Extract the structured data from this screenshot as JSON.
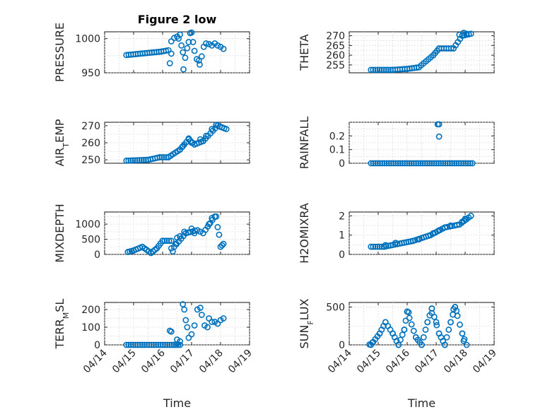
{
  "chart_data": [
    {
      "type": "scatter",
      "title": "Figure 2 low",
      "xlabel": "",
      "ylabel": "PRESSURE",
      "ylim": [
        950,
        1010
      ],
      "yticks": [
        950,
        1000
      ],
      "xlim": [
        0,
        5
      ],
      "xtick_labels": [],
      "grid": true,
      "color": "#0072BD",
      "segments": [
        [
          0.75,
          976,
          1.95,
          981
        ],
        [
          1.95,
          981,
          2.2,
          983
        ]
      ],
      "points": [
        [
          2.25,
          964
        ],
        [
          2.3,
          978
        ],
        [
          2.3,
          996
        ],
        [
          2.4,
          1001
        ],
        [
          2.5,
          1003
        ],
        [
          2.55,
          1000
        ],
        [
          2.6,
          1006
        ],
        [
          2.65,
          990
        ],
        [
          2.7,
          980
        ],
        [
          2.72,
          955
        ],
        [
          2.78,
          972
        ],
        [
          2.85,
          986
        ],
        [
          2.9,
          995
        ],
        [
          2.95,
          1008
        ],
        [
          3.0,
          1009
        ],
        [
          3.05,
          995
        ],
        [
          3.1,
          982
        ],
        [
          3.18,
          970
        ],
        [
          3.25,
          968
        ],
        [
          3.28,
          962
        ],
        [
          3.35,
          974
        ],
        [
          3.42,
          988
        ],
        [
          3.5,
          993
        ],
        [
          3.6,
          992
        ],
        [
          3.7,
          990
        ],
        [
          3.8,
          993
        ],
        [
          3.9,
          990
        ],
        [
          4.0,
          988
        ],
        [
          4.1,
          985
        ]
      ]
    },
    {
      "type": "scatter",
      "title": "",
      "xlabel": "",
      "ylabel": "THETA",
      "ylim": [
        251,
        272
      ],
      "yticks": [
        255,
        260,
        265,
        270
      ],
      "xlim": [
        0,
        5
      ],
      "xtick_labels": [],
      "grid": true,
      "color": "#0072BD",
      "segments": [
        [
          0.75,
          252.5,
          1.5,
          252.5
        ],
        [
          1.5,
          252.5,
          2.0,
          253
        ],
        [
          2.0,
          253,
          2.4,
          253.8
        ],
        [
          2.4,
          253.8,
          2.9,
          260
        ],
        [
          2.9,
          260,
          3.1,
          263.5
        ],
        [
          3.1,
          263.5,
          3.6,
          263.5
        ],
        [
          3.6,
          263.5,
          3.9,
          270
        ],
        [
          3.9,
          270,
          4.2,
          271
        ]
      ],
      "points": [
        [
          3.8,
          270.5
        ],
        [
          3.95,
          271.5
        ],
        [
          4.05,
          271
        ]
      ]
    },
    {
      "type": "scatter",
      "title": "",
      "xlabel": "",
      "ylabel": "AIR_TEMP",
      "ylim": [
        248,
        272
      ],
      "yticks": [
        250,
        260,
        270
      ],
      "xlim": [
        0,
        5
      ],
      "xtick_labels": [],
      "grid": true,
      "color": "#0072BD",
      "segments": [
        [
          0.75,
          249.5,
          1.5,
          250
        ],
        [
          1.5,
          250,
          1.9,
          251.5
        ],
        [
          1.9,
          251.5,
          2.2,
          251.5
        ],
        [
          2.2,
          251.5,
          2.6,
          256
        ],
        [
          2.6,
          256,
          2.9,
          262
        ],
        [
          2.9,
          262,
          3.1,
          259
        ],
        [
          3.1,
          259,
          3.4,
          261
        ],
        [
          3.4,
          261,
          3.9,
          270
        ],
        [
          3.9,
          270,
          4.2,
          268
        ]
      ],
      "points": [
        [
          2.7,
          258
        ],
        [
          2.9,
          262.5
        ],
        [
          3.0,
          260
        ],
        [
          3.3,
          262
        ],
        [
          3.5,
          264
        ],
        [
          3.7,
          268
        ],
        [
          3.85,
          270.5
        ],
        [
          4.05,
          269
        ]
      ]
    },
    {
      "type": "scatter",
      "title": "",
      "xlabel": "",
      "ylabel": "RAINFALL",
      "ylim": [
        0,
        0.3
      ],
      "yticks": [
        0,
        0.1,
        0.2
      ],
      "xlim": [
        0,
        5
      ],
      "xtick_labels": [],
      "grid": true,
      "color": "#0072BD",
      "segments": [
        [
          0.75,
          0,
          4.25,
          0
        ]
      ],
      "points": [
        [
          3.05,
          0.285
        ],
        [
          3.1,
          0.285
        ],
        [
          3.1,
          0.195
        ]
      ]
    },
    {
      "type": "scatter",
      "title": "",
      "xlabel": "",
      "ylabel": "MIXDEPTH",
      "ylim": [
        0,
        1400
      ],
      "yticks": [
        0,
        500,
        1000
      ],
      "xlim": [
        0,
        5
      ],
      "xtick_labels": [],
      "grid": true,
      "color": "#0072BD",
      "segments": [
        [
          0.8,
          80,
          1.0,
          130
        ],
        [
          1.0,
          130,
          1.3,
          250
        ],
        [
          1.3,
          250,
          1.6,
          50
        ],
        [
          1.6,
          50,
          1.8,
          200
        ],
        [
          1.8,
          200,
          2.0,
          450
        ],
        [
          2.0,
          450,
          2.3,
          450
        ],
        [
          2.4,
          250,
          2.8,
          700
        ],
        [
          2.8,
          700,
          3.2,
          800
        ],
        [
          3.4,
          700,
          3.8,
          1250
        ]
      ],
      "points": [
        [
          2.3,
          200
        ],
        [
          2.35,
          100
        ],
        [
          2.45,
          350
        ],
        [
          2.5,
          550
        ],
        [
          2.6,
          600
        ],
        [
          2.75,
          750
        ],
        [
          3.0,
          850
        ],
        [
          3.1,
          700
        ],
        [
          3.3,
          750
        ],
        [
          3.6,
          1000
        ],
        [
          3.7,
          1200
        ],
        [
          3.85,
          1250
        ],
        [
          3.9,
          900
        ],
        [
          3.95,
          650
        ],
        [
          4.0,
          250
        ],
        [
          4.05,
          300
        ],
        [
          4.1,
          350
        ]
      ]
    },
    {
      "type": "scatter",
      "title": "",
      "xlabel": "",
      "ylabel": "H2OMIXRA",
      "ylim": [
        0,
        2.2
      ],
      "yticks": [
        0,
        1,
        2
      ],
      "xlim": [
        0,
        5
      ],
      "xtick_labels": [],
      "grid": true,
      "color": "#0072BD",
      "segments": [
        [
          0.75,
          0.4,
          1.2,
          0.4
        ],
        [
          1.2,
          0.4,
          2.2,
          0.7
        ],
        [
          2.2,
          0.7,
          2.8,
          1.0
        ],
        [
          2.8,
          1.0,
          3.3,
          1.4
        ],
        [
          3.3,
          1.4,
          3.8,
          1.55
        ],
        [
          3.8,
          1.55,
          4.2,
          2.0
        ]
      ],
      "points": [
        [
          1.25,
          0.48
        ],
        [
          1.6,
          0.6
        ],
        [
          2.4,
          0.78
        ],
        [
          2.9,
          1.1
        ],
        [
          3.1,
          1.25
        ],
        [
          3.5,
          1.5
        ],
        [
          3.9,
          1.7
        ],
        [
          4.0,
          1.85
        ]
      ]
    },
    {
      "type": "scatter",
      "title": "",
      "xlabel": "Time",
      "ylabel": "TERR_MSL",
      "ylim": [
        0,
        240
      ],
      "yticks": [
        0,
        100,
        200
      ],
      "xlim": [
        0,
        5
      ],
      "xtick_labels": [
        "04/14",
        "04/15",
        "04/16",
        "04/17",
        "04/18",
        "04/19"
      ],
      "grid": true,
      "color": "#0072BD",
      "segments": [
        [
          0.75,
          0,
          2.4,
          0
        ],
        [
          2.4,
          0,
          2.6,
          0
        ]
      ],
      "points": [
        [
          2.25,
          80
        ],
        [
          2.3,
          75
        ],
        [
          2.5,
          30
        ],
        [
          2.6,
          20
        ],
        [
          2.7,
          230
        ],
        [
          2.75,
          200
        ],
        [
          2.8,
          140
        ],
        [
          2.85,
          100
        ],
        [
          2.9,
          40
        ],
        [
          3.0,
          60
        ],
        [
          3.1,
          110
        ],
        [
          3.2,
          200
        ],
        [
          3.3,
          210
        ],
        [
          3.35,
          170
        ],
        [
          3.45,
          110
        ],
        [
          3.55,
          100
        ],
        [
          3.6,
          150
        ],
        [
          3.7,
          130
        ],
        [
          3.8,
          130
        ],
        [
          3.9,
          120
        ],
        [
          4.0,
          140
        ],
        [
          4.1,
          150
        ]
      ]
    },
    {
      "type": "scatter",
      "title": "",
      "xlabel": "Time",
      "ylabel": "SUN_FLUX",
      "ylim": [
        0,
        560
      ],
      "yticks": [
        0,
        500
      ],
      "xlim": [
        0,
        5
      ],
      "xtick_labels": [
        "04/14",
        "04/15",
        "04/16",
        "04/17",
        "04/18",
        "04/19"
      ],
      "grid": true,
      "color": "#0072BD",
      "segments": [
        [
          0.75,
          0,
          1.05,
          150
        ],
        [
          1.05,
          150,
          1.25,
          300
        ],
        [
          1.25,
          300,
          1.5,
          150
        ],
        [
          1.5,
          150,
          1.7,
          0
        ],
        [
          1.7,
          0,
          1.9,
          200
        ],
        [
          1.9,
          200,
          2.0,
          440
        ],
        [
          2.0,
          440,
          2.3,
          100
        ],
        [
          2.3,
          100,
          2.5,
          0
        ],
        [
          2.5,
          0,
          2.7,
          300
        ],
        [
          2.7,
          300,
          2.85,
          480
        ],
        [
          2.85,
          480,
          3.1,
          150
        ],
        [
          3.1,
          150,
          3.3,
          0
        ],
        [
          3.3,
          0,
          3.5,
          300
        ],
        [
          3.5,
          300,
          3.65,
          500
        ],
        [
          3.65,
          500,
          3.9,
          150
        ],
        [
          3.9,
          150,
          4.05,
          0
        ]
      ],
      "points": [
        [
          0.7,
          5
        ],
        [
          0.8,
          30
        ],
        [
          2.05,
          430
        ],
        [
          2.85,
          420
        ],
        [
          3.0,
          300
        ],
        [
          3.6,
          470
        ],
        [
          3.7,
          450
        ],
        [
          3.95,
          50
        ]
      ]
    }
  ]
}
